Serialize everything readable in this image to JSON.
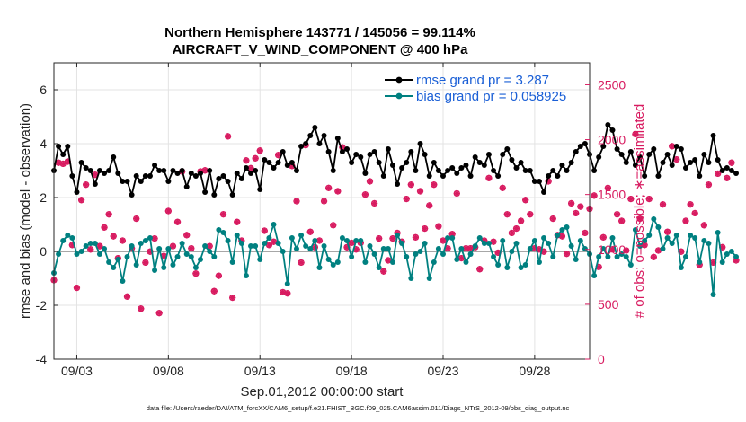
{
  "chart_data": {
    "type": "line",
    "title": [
      "Northern Hemisphere 143771 / 145056 = 99.114%",
      "AIRCRAFT_V_WIND_COMPONENT @ 400 hPa"
    ],
    "xlabel": "Sep.01,2012 00:00:00 start",
    "ylabel": "rmse and bias (model - observation)",
    "ylabel_right": "# of obs: o=possible; ∗=assimilated",
    "xlim": [
      1.75,
      31.0
    ],
    "ylim": [
      -4,
      7
    ],
    "ylim_right": [
      0,
      2700
    ],
    "x_ticks": [
      {
        "value": 3,
        "label": "09/03"
      },
      {
        "value": 8,
        "label": "09/08"
      },
      {
        "value": 13,
        "label": "09/13"
      },
      {
        "value": 18,
        "label": "09/18"
      },
      {
        "value": 23,
        "label": "09/23"
      },
      {
        "value": 28,
        "label": "09/28"
      }
    ],
    "y_ticks": [
      -4,
      -2,
      0,
      2,
      4,
      6
    ],
    "y_ticks_right": [
      0,
      500,
      1000,
      1500,
      2000,
      2500
    ],
    "x_start": 1.75,
    "x_step": 0.25,
    "legend": {
      "position": "top-right",
      "entries": [
        "rmse grand pr = 3.287",
        "bias grand pr = 0.058925"
      ]
    },
    "series": [
      {
        "name": "rmse grand pr = 3.287",
        "axis": "left",
        "color": "#000000",
        "values": [
          3.0,
          3.9,
          3.6,
          3.9,
          2.8,
          2.2,
          3.3,
          3.1,
          3.0,
          2.5,
          3.0,
          2.9,
          3.0,
          3.5,
          2.9,
          2.6,
          2.6,
          2.1,
          2.8,
          2.6,
          2.8,
          2.8,
          3.2,
          3.0,
          3.0,
          2.6,
          3.0,
          2.9,
          3.0,
          2.4,
          2.9,
          2.8,
          2.9,
          2.2,
          3.0,
          2.1,
          2.7,
          2.8,
          2.6,
          2.1,
          2.9,
          2.7,
          3.1,
          2.9,
          3.0,
          2.3,
          3.4,
          3.3,
          3.1,
          3.3,
          3.7,
          3.2,
          3.3,
          3.0,
          3.9,
          4.0,
          4.3,
          4.6,
          4.0,
          4.3,
          3.7,
          3.0,
          4.2,
          3.7,
          3.8,
          3.3,
          3.6,
          3.5,
          2.9,
          3.6,
          3.7,
          3.3,
          2.8,
          3.8,
          3.2,
          2.5,
          3.1,
          3.3,
          3.7,
          3.0,
          4.0,
          3.6,
          2.8,
          3.3,
          3.0,
          2.8,
          3.0,
          3.1,
          2.9,
          3.1,
          3.2,
          2.8,
          3.5,
          3.3,
          3.2,
          3.6,
          3.0,
          2.8,
          3.6,
          3.8,
          3.4,
          3.1,
          3.3,
          3.0,
          3.0,
          2.6,
          2.6,
          2.2,
          2.8,
          3.0,
          2.8,
          3.2,
          3.0,
          3.3,
          3.7,
          3.9,
          4.0,
          3.6,
          3.0,
          3.5,
          3.9,
          4.7,
          4.5,
          3.8,
          3.6,
          3.3,
          3.7,
          3.2,
          3.5,
          2.8,
          3.6,
          3.8,
          2.8,
          3.3,
          3.6,
          3.2,
          3.9,
          3.8,
          3.1,
          3.3,
          3.4,
          2.8,
          3.6,
          3.3,
          4.3,
          3.4,
          3.0,
          3.1,
          3.0,
          2.9
        ]
      },
      {
        "name": "bias grand pr = 0.058925",
        "axis": "left",
        "color": "#008080",
        "values": [
          -0.8,
          -0.1,
          0.4,
          0.6,
          0.5,
          -0.1,
          0.0,
          0.2,
          0.3,
          0.3,
          -0.1,
          0.1,
          -0.4,
          -0.6,
          -0.3,
          -1.1,
          -0.2,
          0.2,
          -0.5,
          0.3,
          0.4,
          0.5,
          -0.7,
          0.1,
          -0.6,
          0.1,
          -0.5,
          -0.2,
          0.3,
          -0.1,
          -0.2,
          -0.6,
          -0.3,
          0.2,
          0.0,
          -0.2,
          0.8,
          0.7,
          0.4,
          -0.4,
          0.6,
          0.3,
          -0.9,
          0.2,
          0.2,
          -0.3,
          0.3,
          0.5,
          1.0,
          0.3,
          0.0,
          -1.2,
          0.5,
          0.1,
          0.6,
          0.2,
          0.1,
          0.4,
          -0.6,
          0.2,
          -0.3,
          -0.5,
          -0.4,
          0.5,
          0.4,
          -0.2,
          0.4,
          0.4,
          -0.4,
          0.2,
          -0.1,
          -0.6,
          0.1,
          0.1,
          -0.4,
          0.6,
          0.3,
          -0.2,
          -1.0,
          -0.1,
          0.0,
          0.3,
          -1.0,
          -0.4,
          0.1,
          -0.1,
          0.5,
          0.5,
          -0.3,
          0.1,
          -0.4,
          -0.1,
          0.2,
          0.5,
          0.3,
          0.3,
          -0.2,
          -0.5,
          0.4,
          -0.6,
          0.0,
          0.3,
          -0.6,
          -0.5,
          0.1,
          0.4,
          -0.4,
          0.5,
          0.3,
          -0.2,
          0.6,
          0.8,
          0.9,
          0.2,
          -0.3,
          0.4,
          0.1,
          -0.1,
          -0.9,
          -0.2,
          0.1,
          -0.2,
          0.5,
          -0.2,
          -0.1,
          -0.2,
          -0.5,
          0.8,
          0.2,
          0.4,
          0.6,
          1.2,
          0.9,
          0.1,
          0.5,
          0.3,
          0.6,
          -0.6,
          -0.2,
          0.6,
          0.5,
          -0.4,
          0.4,
          0.3,
          -1.6,
          0.7,
          -0.4,
          -0.1,
          0.0,
          -0.2
        ]
      }
    ],
    "obs_counts": {
      "axis": "right",
      "color": "#D81B60",
      "marker_possible": "o",
      "marker_assimilated": "*",
      "values": [
        720,
        1790,
        1780,
        1800,
        1040,
        650,
        1450,
        1590,
        1000,
        1680,
        1030,
        1200,
        1320,
        1120,
        920,
        1080,
        570,
        1010,
        1280,
        460,
        880,
        980,
        1100,
        420,
        940,
        1350,
        1030,
        1250,
        1710,
        1130,
        1010,
        780,
        1710,
        1720,
        1030,
        620,
        760,
        1320,
        2030,
        560,
        1250,
        1080,
        1810,
        1740,
        1830,
        1900,
        1170,
        1040,
        1070,
        1860,
        610,
        600,
        1760,
        1440,
        880,
        1950,
        1160,
        1020,
        1080,
        1440,
        1560,
        1220,
        1530,
        1930,
        1020,
        1060,
        1000,
        1060,
        1500,
        1620,
        1420,
        1100,
        800,
        900,
        1100,
        1150,
        1070,
        1460,
        1590,
        1110,
        1530,
        1190,
        1400,
        1590,
        1210,
        1080,
        1010,
        1140,
        1510,
        920,
        1010,
        1010,
        1020,
        820,
        1080,
        1650,
        1070,
        970,
        1560,
        1320,
        1150,
        1190,
        1260,
        1450,
        1320,
        1010,
        1000,
        980,
        1620,
        1280,
        1130,
        1120,
        960,
        1420,
        1330,
        1390,
        1150,
        1370,
        1490,
        840,
        1110,
        1560,
        1000,
        1320,
        1260,
        990,
        1460,
        2050,
        1280,
        1040,
        1460,
        930,
        990,
        1410,
        1160,
        1940,
        1820,
        980,
        1260,
        1410,
        1330,
        860,
        1220,
        1590,
        880,
        1690,
        1020,
        1650,
        1790,
        900
      ]
    },
    "foot_note": "data file: /Users/raeder/DAI/ATM_forcXX/CAM6_setup/f.e21.FHIST_BGC.f09_025.CAM6assim.011/Diags_NTrS_2012-09/obs_diag_output.nc"
  }
}
